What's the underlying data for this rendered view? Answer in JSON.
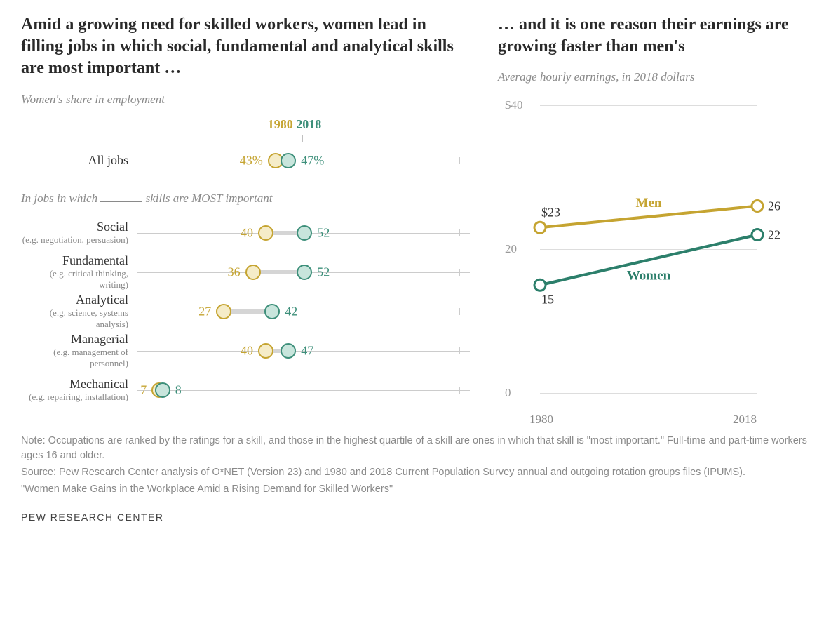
{
  "left": {
    "headline": "Amid a growing need for skilled workers, women lead in filling jobs in which social, fundamental and analytical skills are most important …",
    "subtitle": "Women's share in employment",
    "legend": {
      "y1980": "1980",
      "y2018": "2018"
    },
    "scale": {
      "min": 0,
      "max": 100,
      "axis_color": "#cccccc"
    },
    "allJobs": {
      "label": "All jobs",
      "v1980": 43,
      "v1980_label": "43%",
      "v2018": 47,
      "v2018_label": "47%"
    },
    "skillsHeader_a": "In jobs in which ",
    "skillsHeader_b": " skills are MOST important",
    "rows": [
      {
        "label": "Social",
        "sub": "(e.g. negotiation, persuasion)",
        "v1980": 40,
        "v1980_label": "40",
        "v2018": 52,
        "v2018_label": "52"
      },
      {
        "label": "Fundamental",
        "sub": "(e.g. critical thinking, writing)",
        "v1980": 36,
        "v1980_label": "36",
        "v2018": 52,
        "v2018_label": "52"
      },
      {
        "label": "Analytical",
        "sub": "(e.g. science, systems analysis)",
        "v1980": 27,
        "v1980_label": "27",
        "v2018": 42,
        "v2018_label": "42"
      },
      {
        "label": "Managerial",
        "sub": "(e.g. management of personnel)",
        "v1980": 40,
        "v1980_label": "40",
        "v2018": 47,
        "v2018_label": "47"
      },
      {
        "label": "Mechanical",
        "sub": "(e.g. repairing, installation)",
        "v1980": 7,
        "v1980_label": "7",
        "v2018": 8,
        "v2018_label": "8"
      }
    ],
    "colors": {
      "c1980_border": "#c5a431",
      "c1980_fill": "#f5ecc8",
      "c2018_border": "#3d8f7a",
      "c2018_fill": "#c8e5dc",
      "connector": "#d5d5d5"
    }
  },
  "right": {
    "headline": "… and it is one reason their earnings are growing faster than men's",
    "subtitle": "Average hourly earnings, in 2018 dollars",
    "yAxis": {
      "min": 0,
      "max": 40,
      "ticks": [
        0,
        20,
        40
      ],
      "top_label": "$40",
      "mid_label": "20",
      "bottom_label": "0"
    },
    "xAxis": {
      "start": "1980",
      "end": "2018"
    },
    "series": {
      "men": {
        "label": "Men",
        "color": "#c5a431",
        "y1980": 23,
        "y1980_label": "$23",
        "y2018": 26,
        "y2018_label": "26"
      },
      "women": {
        "label": "Women",
        "color": "#2c7f6b",
        "y1980": 15,
        "y1980_label": "15",
        "y2018": 22,
        "y2018_label": "22"
      }
    },
    "style": {
      "line_width": 4,
      "marker_radius": 8,
      "marker_fill": "#ffffff"
    }
  },
  "footer": {
    "note": "Note: Occupations are ranked by the ratings for a skill, and those in the highest quartile of a skill are ones in which that skill is \"most important.\" Full-time and part-time workers ages 16 and older.",
    "source": "Source: Pew Research Center analysis of O*NET (Version 23) and 1980 and 2018 Current Population Survey annual and outgoing rotation groups files (IPUMS).",
    "title": "\"Women Make Gains in the Workplace Amid a Rising Demand for Skilled Workers\"",
    "brand": "PEW RESEARCH CENTER"
  }
}
